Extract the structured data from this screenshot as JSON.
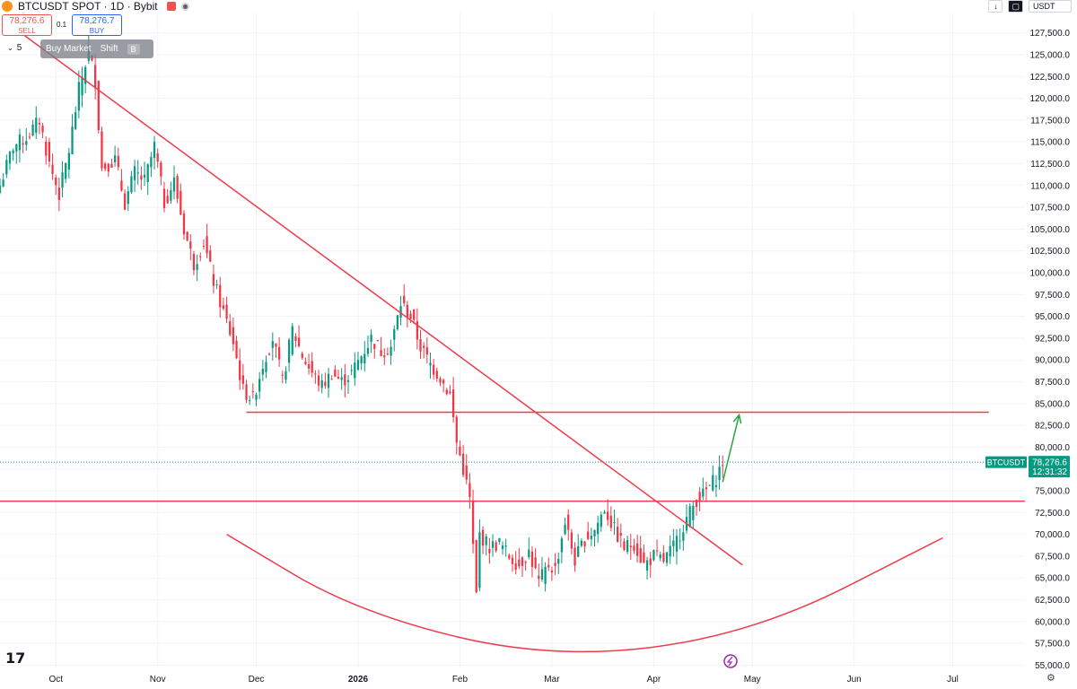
{
  "header": {
    "title": "BTCUSDT SPOT · 1D · Bybit",
    "sell_price": "78,276.6",
    "sell_label": "SELL",
    "buy_price": "78,276.7",
    "buy_label": "BUY",
    "quantity": "0.1",
    "hint_label": "Buy Market",
    "hint_key1": "Shift",
    "hint_key2": "B",
    "indicator_count": "5",
    "currency": "USDT",
    "right_arrow": "↓"
  },
  "chart_data": {
    "type": "candlestick",
    "symbol": "BTCUSDT",
    "interval": "1D",
    "exchange": "Bybit",
    "ylim": [
      55000,
      130000
    ],
    "y_ticks": [
      55000,
      57500,
      60000,
      62500,
      65000,
      67500,
      70000,
      72500,
      75000,
      77500,
      80000,
      82500,
      85000,
      87500,
      90000,
      92500,
      95000,
      97500,
      100000,
      102500,
      105000,
      107500,
      110000,
      112500,
      115000,
      117500,
      120000,
      122500,
      125000,
      127500
    ],
    "y_tick_labels": [
      "55,000.0",
      "57,500.0",
      "60,000.0",
      "62,500.0",
      "65,000.0",
      "67,500.0",
      "70,000.0",
      "72,500.0",
      "75,000.0",
      "77,500.0",
      "80,000.0",
      "82,500.0",
      "85,000.0",
      "87,500.0",
      "90,000.0",
      "92,500.0",
      "95,000.0",
      "97,500.0",
      "100,000.0",
      "102,500.0",
      "105,000.0",
      "107,500.0",
      "110,000.0",
      "112,500.0",
      "115,000.0",
      "117,500.0",
      "120,000.0",
      "122,500.0",
      "125,000.0",
      "127,500.0"
    ],
    "x_range": [
      "2025-09-14",
      "2026-07-23"
    ],
    "x_ticks": [
      {
        "date": "2025-10-01",
        "label": "Oct",
        "bold": false
      },
      {
        "date": "2025-11-01",
        "label": "Nov",
        "bold": false
      },
      {
        "date": "2025-12-01",
        "label": "Dec",
        "bold": false
      },
      {
        "date": "2026-01-01",
        "label": "2026",
        "bold": true
      },
      {
        "date": "2026-02-01",
        "label": "Feb",
        "bold": false
      },
      {
        "date": "2026-03-01",
        "label": "Mar",
        "bold": false
      },
      {
        "date": "2026-04-01",
        "label": "Apr",
        "bold": false
      },
      {
        "date": "2026-05-01",
        "label": "May",
        "bold": false
      },
      {
        "date": "2026-06-01",
        "label": "Jun",
        "bold": false
      },
      {
        "date": "2026-07-01",
        "label": "Jul",
        "bold": false
      }
    ],
    "close_path": [
      [
        "2025-09-14",
        110000
      ],
      [
        "2025-09-18",
        114500
      ],
      [
        "2025-09-22",
        115500
      ],
      [
        "2025-09-26",
        117500
      ],
      [
        "2025-09-29",
        112500
      ],
      [
        "2025-10-02",
        109000
      ],
      [
        "2025-10-05",
        114000
      ],
      [
        "2025-10-08",
        121000
      ],
      [
        "2025-10-11",
        125500
      ],
      [
        "2025-10-13",
        122000
      ],
      [
        "2025-10-15",
        112000
      ],
      [
        "2025-10-19",
        113000
      ],
      [
        "2025-10-22",
        108000
      ],
      [
        "2025-10-25",
        111500
      ],
      [
        "2025-10-28",
        110500
      ],
      [
        "2025-10-31",
        114500
      ],
      [
        "2025-11-03",
        108000
      ],
      [
        "2025-11-06",
        110500
      ],
      [
        "2025-11-09",
        105000
      ],
      [
        "2025-11-12",
        101000
      ],
      [
        "2025-11-15",
        103500
      ],
      [
        "2025-11-18",
        99000
      ],
      [
        "2025-11-21",
        95500
      ],
      [
        "2025-11-24",
        92000
      ],
      [
        "2025-11-27",
        86500
      ],
      [
        "2025-11-30",
        85500
      ],
      [
        "2025-12-03",
        89500
      ],
      [
        "2025-12-06",
        92500
      ],
      [
        "2025-12-09",
        87500
      ],
      [
        "2025-12-12",
        93500
      ],
      [
        "2025-12-15",
        90500
      ],
      [
        "2025-12-18",
        88500
      ],
      [
        "2025-12-21",
        87000
      ],
      [
        "2025-12-24",
        88500
      ],
      [
        "2025-12-27",
        87500
      ],
      [
        "2025-12-30",
        88500
      ],
      [
        "2026-01-02",
        90500
      ],
      [
        "2026-01-05",
        92500
      ],
      [
        "2026-01-08",
        91000
      ],
      [
        "2026-01-11",
        91500
      ],
      [
        "2026-01-14",
        96500
      ],
      [
        "2026-01-17",
        95000
      ],
      [
        "2026-01-20",
        91500
      ],
      [
        "2026-01-23",
        89500
      ],
      [
        "2026-01-26",
        88000
      ],
      [
        "2026-01-29",
        86000
      ],
      [
        "2026-01-31",
        80500
      ],
      [
        "2026-02-02",
        77500
      ],
      [
        "2026-02-04",
        74000
      ],
      [
        "2026-02-06",
        63000
      ],
      [
        "2026-02-07",
        70000
      ],
      [
        "2026-02-10",
        68500
      ],
      [
        "2026-02-13",
        69000
      ],
      [
        "2026-02-16",
        67500
      ],
      [
        "2026-02-19",
        66500
      ],
      [
        "2026-02-22",
        68000
      ],
      [
        "2026-02-25",
        64500
      ],
      [
        "2026-02-28",
        66500
      ],
      [
        "2026-03-02",
        66000
      ],
      [
        "2026-03-05",
        71500
      ],
      [
        "2026-03-08",
        67000
      ],
      [
        "2026-03-11",
        69500
      ],
      [
        "2026-03-14",
        70500
      ],
      [
        "2026-03-17",
        73000
      ],
      [
        "2026-03-20",
        70500
      ],
      [
        "2026-03-23",
        68500
      ],
      [
        "2026-03-26",
        69000
      ],
      [
        "2026-03-29",
        66500
      ],
      [
        "2026-04-01",
        67500
      ],
      [
        "2026-04-04",
        67000
      ],
      [
        "2026-04-07",
        68500
      ],
      [
        "2026-04-10",
        71000
      ],
      [
        "2026-04-12",
        72500
      ],
      [
        "2026-04-14",
        74000
      ],
      [
        "2026-04-16",
        74500
      ],
      [
        "2026-04-18",
        75500
      ],
      [
        "2026-04-20",
        76500
      ],
      [
        "2026-04-22",
        78276.6
      ]
    ],
    "drawings": [
      {
        "kind": "trendline",
        "from": [
          "2025-09-15",
          129000
        ],
        "to": [
          "2026-04-28",
          66500
        ],
        "color": "#ef3b4b"
      },
      {
        "kind": "hline",
        "from": [
          "2025-11-28",
          84000
        ],
        "to": [
          "2026-07-12",
          84000
        ],
        "color": "#ef3b4b"
      },
      {
        "kind": "hline",
        "from": [
          "2025-09-14",
          73800
        ],
        "to": [
          "2026-07-23",
          73800
        ],
        "color": "#ef3b4b"
      },
      {
        "kind": "arc",
        "points": [
          [
            "2025-11-22",
            70000
          ],
          [
            "2026-01-01",
            61000
          ],
          [
            "2026-03-01",
            55600
          ],
          [
            "2026-05-01",
            58500
          ],
          [
            "2026-06-28",
            69600
          ]
        ],
        "color": "#ef3b4b"
      },
      {
        "kind": "arrow",
        "from": [
          "2026-04-22",
          76000
        ],
        "to": [
          "2026-04-27",
          83700
        ],
        "color": "#26a641"
      }
    ],
    "last_price": {
      "value": 78276.6,
      "symbol_label": "BTCUSDT",
      "price_label": "78,276.6",
      "countdown": "12:31:32"
    },
    "colors": {
      "up": "#089981",
      "down": "#f23645",
      "drawing": "#ef3b4b",
      "arrow": "#26a641"
    },
    "grid": true
  }
}
